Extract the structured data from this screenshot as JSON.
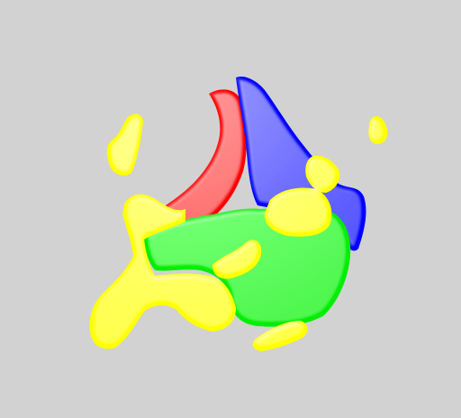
{
  "viewport": {
    "background": "#d2d2d2"
  },
  "segments": [
    {
      "name": "red",
      "color": "#ff0000"
    },
    {
      "name": "blue",
      "color": "#0000ff"
    },
    {
      "name": "green",
      "color": "#00ee00"
    },
    {
      "name": "yellow",
      "color": "#ffff00"
    }
  ]
}
